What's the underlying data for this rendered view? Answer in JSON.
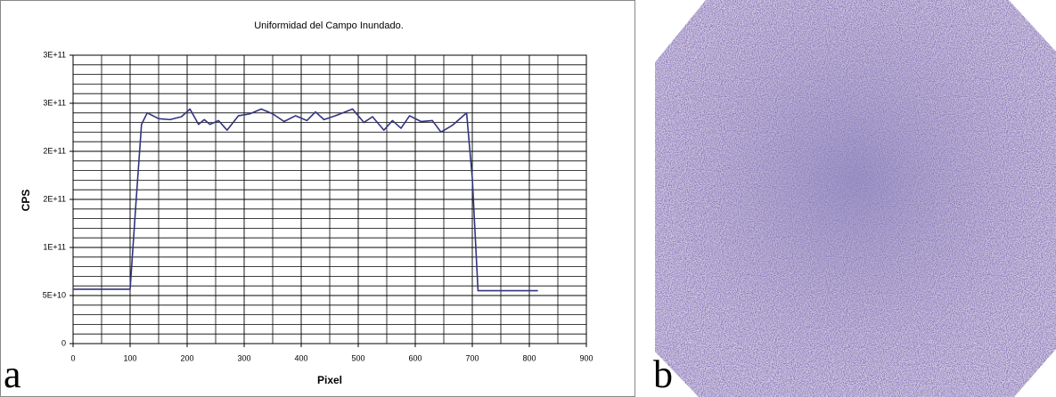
{
  "panel_labels": [
    "a",
    "b"
  ],
  "chart_data": {
    "type": "line",
    "title": "Uniformidad del Campo Inundado.",
    "x_label": "Pixel",
    "y_label": "CPS",
    "x": [
      0,
      100,
      110,
      120,
      130,
      150,
      170,
      190,
      205,
      220,
      230,
      240,
      255,
      270,
      290,
      310,
      330,
      350,
      370,
      390,
      410,
      425,
      440,
      460,
      490,
      510,
      525,
      545,
      560,
      575,
      590,
      610,
      630,
      645,
      665,
      690,
      700,
      710,
      815
    ],
    "series": [
      {
        "color": "#33337f",
        "values": [
          56500000000.0,
          56500000000.0,
          144000000000.0,
          228000000000.0,
          240000000000.0,
          234000000000.0,
          233000000000.0,
          236000000000.0,
          244000000000.0,
          228000000000.0,
          233000000000.0,
          228000000000.0,
          232000000000.0,
          222000000000.0,
          237000000000.0,
          239000000000.0,
          244000000000.0,
          239000000000.0,
          231000000000.0,
          237000000000.0,
          232000000000.0,
          241000000000.0,
          233000000000.0,
          237000000000.0,
          244000000000.0,
          230000000000.0,
          236000000000.0,
          222000000000.0,
          232000000000.0,
          224000000000.0,
          237000000000.0,
          231000000000.0,
          232000000000.0,
          220000000000.0,
          227000000000.0,
          240000000000.0,
          172000000000.0,
          55000000000.0,
          55000000000.0
        ]
      }
    ],
    "xlim": [
      0,
      900
    ],
    "ylim": [
      0,
      300000000000.0
    ],
    "xticks": [
      0,
      100,
      200,
      300,
      400,
      500,
      600,
      700,
      800,
      900
    ],
    "yticks": [
      0,
      {
        "value": 50000000000.0,
        "label": "5E+10"
      },
      {
        "value": 100000000000.0,
        "label": "1E+11"
      },
      {
        "value": 150000000000.0,
        "label": "2E+11"
      },
      {
        "value": 200000000000.0,
        "label": "2E+11"
      },
      {
        "value": 250000000000.0,
        "label": "3E+11"
      },
      {
        "value": 300000000000.0,
        "label": "3E+11"
      }
    ],
    "grid": true,
    "minor_grid": true
  }
}
